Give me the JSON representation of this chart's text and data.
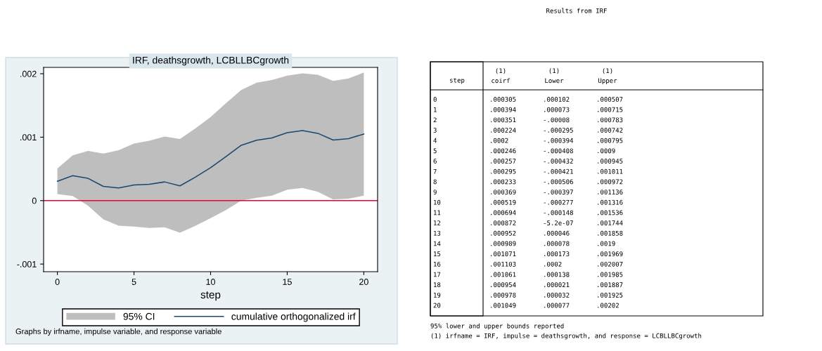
{
  "chart_data": [
    {
      "type": "line",
      "title": "IRF, deathsgrowth, LCBLLBCgrowth",
      "xlabel": "step",
      "x": [
        0,
        1,
        2,
        3,
        4,
        5,
        6,
        7,
        8,
        9,
        10,
        11,
        12,
        13,
        14,
        15,
        16,
        17,
        18,
        19,
        20
      ],
      "series": [
        {
          "name": "cumulative orthogonalized irf",
          "color": "#1a476f",
          "values": [
            0.000305,
            0.000394,
            0.000351,
            0.000224,
            0.0002,
            0.000246,
            0.000257,
            0.000295,
            0.000233,
            0.000369,
            0.000519,
            0.000694,
            0.000872,
            0.000952,
            0.000989,
            0.001071,
            0.001103,
            0.001061,
            0.000954,
            0.000978,
            0.001049
          ],
          "lower": [
            0.000102,
            7.3e-05,
            -8e-05,
            -0.000295,
            -0.000394,
            -0.000408,
            -0.000432,
            -0.000421,
            -0.000506,
            -0.000397,
            -0.000277,
            -0.000148,
            -5.2e-07,
            4.6e-05,
            7.8e-05,
            0.000173,
            0.0002,
            0.000138,
            2.1e-05,
            3.2e-05,
            7.7e-05
          ],
          "upper": [
            0.000507,
            0.000715,
            0.000783,
            0.000742,
            0.000795,
            0.0009,
            0.000945,
            0.001011,
            0.000972,
            0.001136,
            0.001316,
            0.001536,
            0.001744,
            0.001858,
            0.0019,
            0.001969,
            0.002007,
            0.001985,
            0.001887,
            0.001925,
            0.00202
          ]
        }
      ],
      "xlim": [
        -0.9,
        20.9
      ],
      "xticks": [
        0,
        5,
        10,
        15,
        20
      ],
      "ylim": [
        -0.00112,
        0.0021
      ],
      "yticks": [
        {
          "value": -0.001,
          "label": "-.001"
        },
        {
          "value": 0,
          "label": "0"
        },
        {
          "value": 0.001,
          "label": ".001"
        },
        {
          "value": 0.002,
          "label": ".002"
        }
      ],
      "ref_lines": [
        {
          "axis": "y",
          "value": 0,
          "color": "#e8003d"
        }
      ],
      "legend": "bottom",
      "grid": false,
      "annotations": [
        "95% CI",
        "Graphs by irfname, impulse variable, and response variable"
      ]
    },
    {
      "type": "heatmap",
      "title": "Results from IRF",
      "ylabel": "step",
      "categories": [
        "coirf",
        "Lower",
        "Upper"
      ],
      "y_categories": [
        "0",
        "1",
        "2",
        "3",
        "4",
        "5",
        "6",
        "7",
        "8",
        "9",
        "10",
        "11",
        "12",
        "13",
        "14",
        "15",
        "16",
        "17",
        "18",
        "19",
        "20"
      ],
      "cells": [
        [
          0.000305,
          0.000102,
          0.000507
        ],
        [
          0.000394,
          7.3e-05,
          0.000715
        ],
        [
          0.000351,
          -8e-05,
          0.000783
        ],
        [
          0.000224,
          -0.000295,
          0.000742
        ],
        [
          0.0002,
          -0.000394,
          0.000795
        ],
        [
          0.000246,
          -0.000408,
          0.0009
        ],
        [
          0.000257,
          -0.000432,
          0.000945
        ],
        [
          0.000295,
          -0.000421,
          0.001011
        ],
        [
          0.000233,
          -0.000506,
          0.000972
        ],
        [
          0.000369,
          -0.000397,
          0.001136
        ],
        [
          0.000519,
          -0.000277,
          0.001316
        ],
        [
          0.000694,
          -0.000148,
          0.001536
        ],
        [
          0.000872,
          -5.2e-07,
          0.001744
        ],
        [
          0.000952,
          4.6e-05,
          0.001858
        ],
        [
          0.000989,
          7.8e-05,
          0.0019
        ],
        [
          0.001071,
          0.000173,
          0.001969
        ],
        [
          0.001103,
          0.0002,
          0.002007
        ],
        [
          0.001061,
          0.000138,
          0.001985
        ],
        [
          0.000954,
          2.1e-05,
          0.001887
        ],
        [
          0.000978,
          3.2e-05,
          0.001925
        ],
        [
          0.001049,
          7.7e-05,
          0.00202
        ]
      ],
      "cell_labels": [
        [
          ".000305",
          ".000102",
          ".000507"
        ],
        [
          ".000394",
          ".000073",
          ".000715"
        ],
        [
          ".000351",
          "-.00008",
          ".000783"
        ],
        [
          ".000224",
          "-.000295",
          ".000742"
        ],
        [
          ".0002",
          "-.000394",
          ".000795"
        ],
        [
          ".000246",
          "-.000408",
          ".0009"
        ],
        [
          ".000257",
          "-.000432",
          ".000945"
        ],
        [
          ".000295",
          "-.000421",
          ".001011"
        ],
        [
          ".000233",
          "-.000506",
          ".000972"
        ],
        [
          ".000369",
          "-.000397",
          ".001136"
        ],
        [
          ".000519",
          "-.000277",
          ".001316"
        ],
        [
          ".000694",
          "-.000148",
          ".001536"
        ],
        [
          ".000872",
          "-5.2e-07",
          ".001744"
        ],
        [
          ".000952",
          ".000046",
          ".001858"
        ],
        [
          ".000989",
          ".000078",
          ".0019"
        ],
        [
          ".001071",
          ".000173",
          ".001969"
        ],
        [
          ".001103",
          ".0002",
          ".002007"
        ],
        [
          ".001061",
          ".000138",
          ".001985"
        ],
        [
          ".000954",
          ".000021",
          ".001887"
        ],
        [
          ".000978",
          ".000032",
          ".001925"
        ],
        [
          ".001049",
          ".000077",
          ".00202"
        ]
      ],
      "annotations": [
        "(1)",
        "(1)",
        "(1)",
        "95% lower and upper bounds reported",
        "(1) irfname = IRF, impulse = deathsgrowth, and response = LCBLLBCgrowth"
      ]
    }
  ]
}
